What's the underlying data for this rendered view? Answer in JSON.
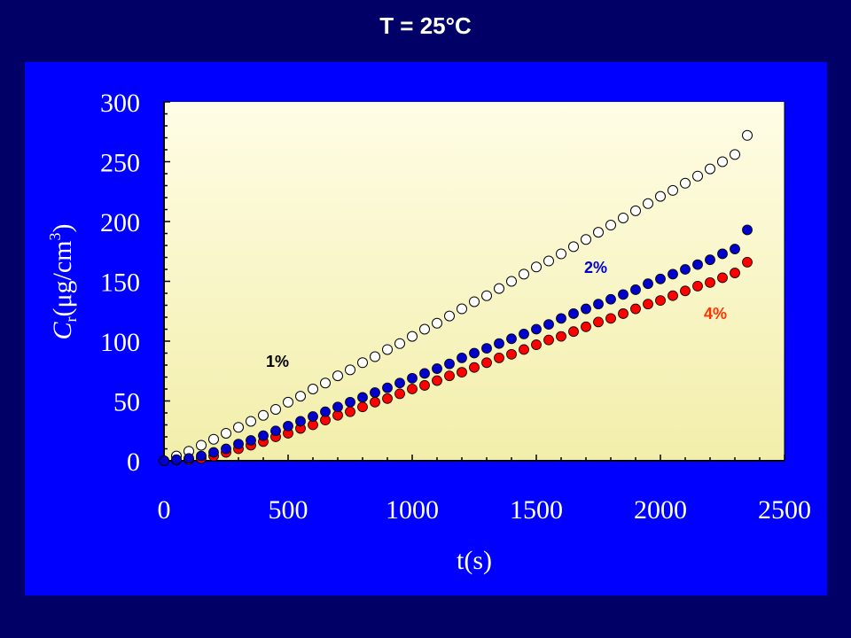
{
  "slide_title": "T = 25°C",
  "colors": {
    "page_background": "#000066",
    "panel_background": "#0000ff",
    "plot_area_top": "#fffde6",
    "plot_area_bottom": "#f2eeaa",
    "series_1_percent_fill": "#ffffff",
    "series_2_percent_fill": "#0000cc",
    "series_4_percent_fill": "#ff0000",
    "label_2_percent": "#0000cc",
    "label_4_percent": "#ff3300",
    "label_1_percent": "#000000",
    "axis_text": "#ffffff"
  },
  "chart_data": {
    "type": "scatter",
    "xlabel": "t(s)",
    "ylabel_main": "C",
    "ylabel_subscript": "r",
    "ylabel_unit": "(μg/cm",
    "ylabel_superscript": "3",
    "ylabel_close": ")",
    "xlim": [
      0,
      2500
    ],
    "ylim": [
      0,
      300
    ],
    "x_ticks": [
      "0",
      "500",
      "1000",
      "1500",
      "2000",
      "2500"
    ],
    "y_ticks": [
      "0",
      "50",
      "100",
      "150",
      "200",
      "250",
      "300"
    ],
    "grid": false,
    "legend": "inline labels",
    "series": [
      {
        "name": "1%",
        "marker": "open-circle",
        "x": [
          0,
          50,
          100,
          150,
          200,
          250,
          300,
          350,
          400,
          450,
          500,
          550,
          600,
          650,
          700,
          750,
          800,
          850,
          900,
          950,
          1000,
          1050,
          1100,
          1150,
          1200,
          1250,
          1300,
          1350,
          1400,
          1450,
          1500,
          1550,
          1600,
          1650,
          1700,
          1750,
          1800,
          1850,
          1900,
          1950,
          2000,
          2050,
          2100,
          2150,
          2200,
          2250,
          2300,
          2350
        ],
        "y": [
          0,
          4,
          8,
          13,
          18,
          23,
          28,
          33,
          38,
          43,
          49,
          54,
          60,
          65,
          71,
          76,
          82,
          87,
          93,
          98,
          104,
          110,
          115,
          121,
          127,
          133,
          138,
          144,
          150,
          156,
          162,
          167,
          173,
          179,
          185,
          191,
          197,
          203,
          209,
          215,
          221,
          226,
          232,
          238,
          244,
          250,
          256,
          272
        ]
      },
      {
        "name": "2%",
        "marker": "filled-circle",
        "x": [
          0,
          50,
          100,
          150,
          200,
          250,
          300,
          350,
          400,
          450,
          500,
          550,
          600,
          650,
          700,
          750,
          800,
          850,
          900,
          950,
          1000,
          1050,
          1100,
          1150,
          1200,
          1250,
          1300,
          1350,
          1400,
          1450,
          1500,
          1550,
          1600,
          1650,
          1700,
          1750,
          1800,
          1850,
          1900,
          1950,
          2000,
          2050,
          2100,
          2150,
          2200,
          2250,
          2300,
          2350
        ],
        "y": [
          0,
          1,
          2,
          4,
          7,
          10,
          14,
          17,
          21,
          25,
          29,
          33,
          37,
          41,
          45,
          49,
          53,
          57,
          61,
          65,
          69,
          73,
          77,
          81,
          86,
          90,
          94,
          98,
          102,
          106,
          110,
          114,
          119,
          123,
          127,
          131,
          135,
          139,
          143,
          148,
          152,
          156,
          160,
          164,
          168,
          173,
          177,
          193
        ]
      },
      {
        "name": "4%",
        "marker": "filled-circle",
        "x": [
          0,
          50,
          100,
          150,
          200,
          250,
          300,
          350,
          400,
          450,
          500,
          550,
          600,
          650,
          700,
          750,
          800,
          850,
          900,
          950,
          1000,
          1050,
          1100,
          1150,
          1200,
          1250,
          1300,
          1350,
          1400,
          1450,
          1500,
          1550,
          1600,
          1650,
          1700,
          1750,
          1800,
          1850,
          1900,
          1950,
          2000,
          2050,
          2100,
          2150,
          2200,
          2250,
          2300,
          2350
        ],
        "y": [
          0,
          0.5,
          1,
          2,
          4,
          7,
          10,
          13,
          16,
          20,
          23,
          27,
          30,
          34,
          38,
          41,
          45,
          49,
          52,
          56,
          60,
          63,
          67,
          71,
          74,
          78,
          82,
          86,
          89,
          93,
          97,
          101,
          104,
          108,
          112,
          116,
          119,
          123,
          127,
          131,
          134,
          138,
          142,
          146,
          149,
          153,
          157,
          166
        ]
      }
    ]
  },
  "annotations": {
    "label_1_percent": "1%",
    "label_2_percent": "2%",
    "label_4_percent": "4%"
  }
}
